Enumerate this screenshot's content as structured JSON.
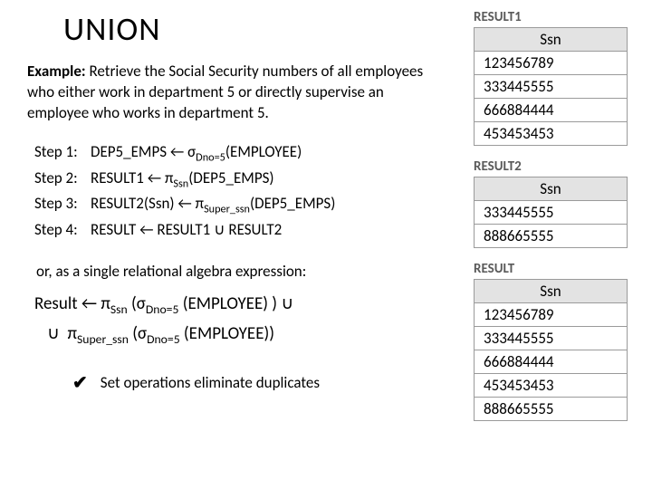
{
  "title": "UNION",
  "example_label": "Example:",
  "example_text": " Retrieve the Social Security numbers of all employees who either work in department 5 or directly supervise an employee who works in department 5.",
  "steps": [
    {
      "label": "Step 1:",
      "expr_html": "DEP5_EMPS ← σ<sub>Dno=5</sub>(EMPLOYEE)"
    },
    {
      "label": "Step 2:",
      "expr_html": "RESULT1 ← π<sub>Ssn</sub>(DEP5_EMPS)"
    },
    {
      "label": "Step 3:",
      "expr_html": "RESULT2(Ssn) ← π<sub>Super_ssn</sub>(DEP5_EMPS)"
    },
    {
      "label": "Step 4:",
      "expr_html": "RESULT ← RESULT1 ∪ RESULT2"
    }
  ],
  "or_text": "or, as a single relational algebra expression:",
  "big_expr_line1_html": "Result ← π<sub>Ssn</sub> (σ<sub>Dno=5</sub> (EMPLOYEE) ) ∪",
  "big_expr_line2_html": "∪&nbsp;&nbsp;π<sub>Super_ssn</sub> (σ<sub>Dno=5</sub> (EMPLOYEE))",
  "bullet_check": "✔",
  "bullet_text": "Set operations eliminate duplicates",
  "tables": [
    {
      "title": "RESULT1",
      "header": "Ssn",
      "rows": [
        "123456789",
        "333445555",
        "666884444",
        "453453453"
      ]
    },
    {
      "title": "RESULT2",
      "header": "Ssn",
      "rows": [
        "333445555",
        "888665555"
      ]
    },
    {
      "title": "RESULT",
      "header": "Ssn",
      "rows": [
        "123456789",
        "333445555",
        "666884444",
        "453453453",
        "888665555"
      ]
    }
  ],
  "colors": {
    "table_header_bg": "#e3e3e3",
    "table_border": "#9a9a9a",
    "table_title_color": "#5a5a5a",
    "text": "#000000",
    "background": "#ffffff"
  }
}
